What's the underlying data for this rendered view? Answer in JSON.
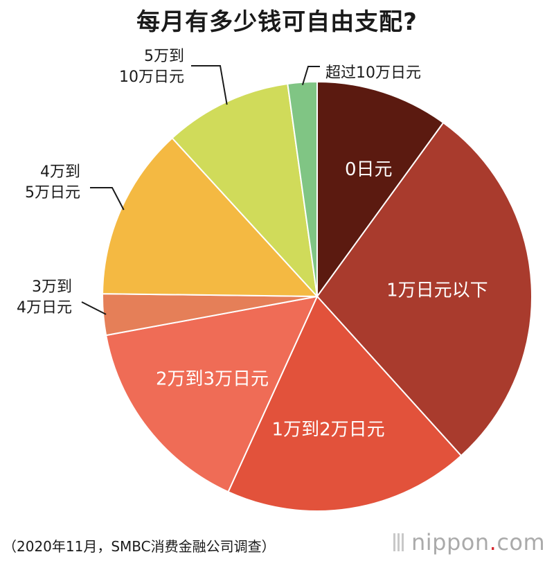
{
  "title": "每月有多少钱可自由支配?",
  "source": "（2020年11月，SMBC消费金融公司调查）",
  "brand": {
    "name": "nippon",
    "dot": ".",
    "suffix": "com"
  },
  "chart_data": {
    "type": "pie",
    "title": "每月有多少钱可自由支配?",
    "start_angle_deg": 0,
    "direction": "clockwise",
    "slices": [
      {
        "label": "0日元",
        "value": 10.0,
        "color": "#5b1a10",
        "label_mode": "inside"
      },
      {
        "label": "1万日元以下",
        "value": 28.3,
        "color": "#a93b2d",
        "label_mode": "inside"
      },
      {
        "label": "1万到2万日元",
        "value": 18.5,
        "color": "#e2523b",
        "label_mode": "inside"
      },
      {
        "label": "2万到3万日元",
        "value": 15.3,
        "color": "#ef6c56",
        "label_mode": "inside"
      },
      {
        "label": "3万到4万日元",
        "lines": [
          "3万到",
          "4万日元"
        ],
        "value": 3.1,
        "color": "#e57f58",
        "label_mode": "outside"
      },
      {
        "label": "4万到5万日元",
        "lines": [
          "4万到",
          "5万日元"
        ],
        "value": 13.0,
        "color": "#f4b942",
        "label_mode": "outside"
      },
      {
        "label": "5万到10万日元",
        "lines": [
          "5万到",
          "10万日元"
        ],
        "value": 9.6,
        "color": "#d0db5a",
        "label_mode": "outside"
      },
      {
        "label": "超过10万日元",
        "lines": [
          "超过10万日元"
        ],
        "value": 2.2,
        "color": "#80c584",
        "label_mode": "outside"
      }
    ]
  }
}
